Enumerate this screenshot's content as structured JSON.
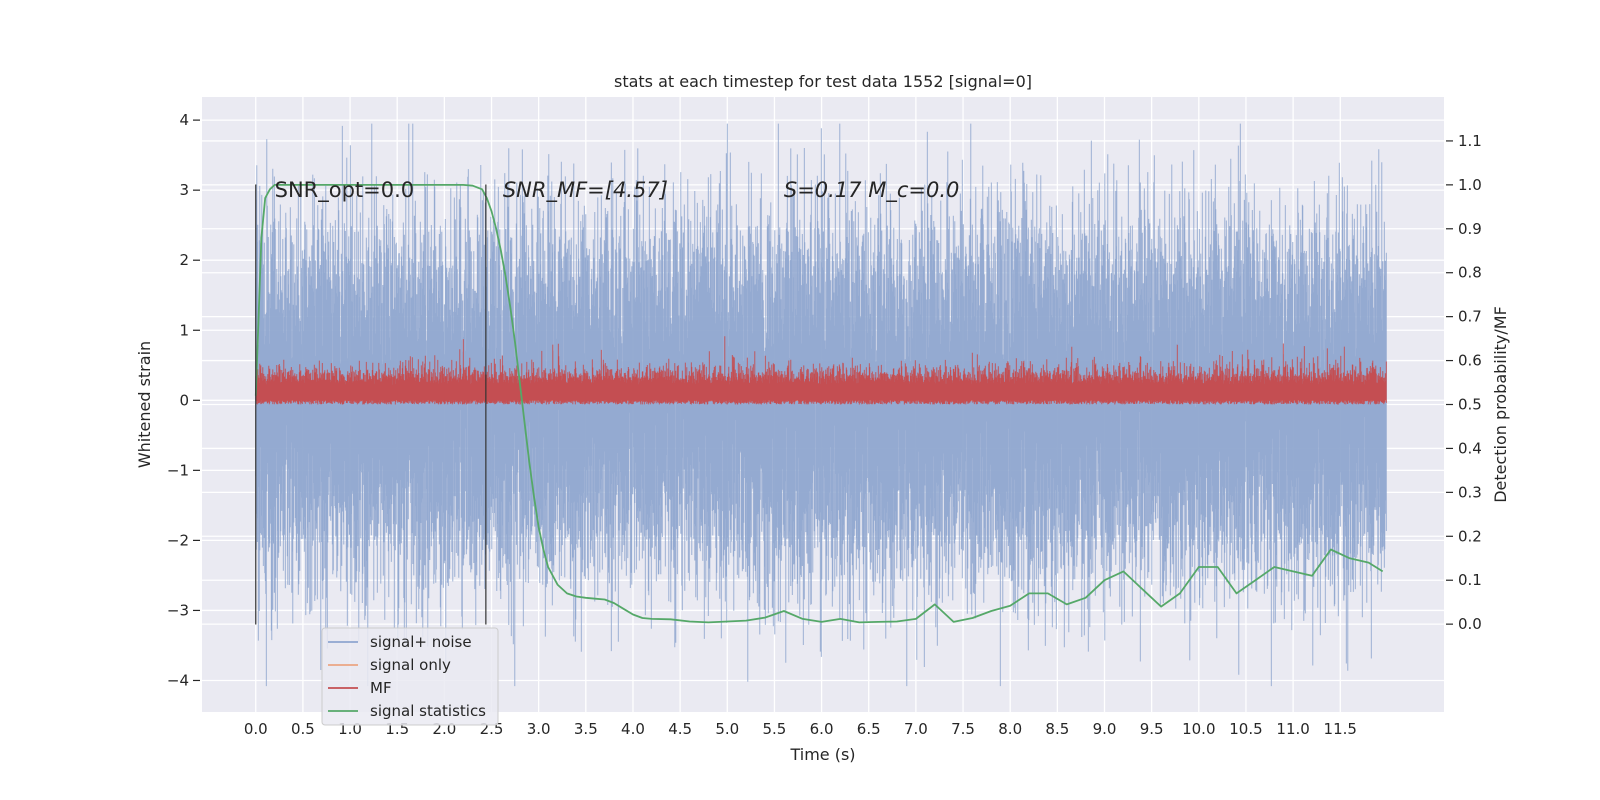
{
  "chart_data": {
    "type": "line",
    "title": "stats at each timestep for test data 1552 [signal=0]",
    "xlabel": "Time (s)",
    "ylabel": "Whitened strain",
    "y2label": "Detection probability/MF",
    "xlim": [
      -0.57,
      12.6
    ],
    "ylim": [
      -4.45,
      4.33
    ],
    "y2lim": [
      -0.2,
      1.2
    ],
    "x_ticks": [
      "0.0",
      "0.5",
      "1.0",
      "1.5",
      "2.0",
      "2.5",
      "3.0",
      "3.5",
      "4.0",
      "4.5",
      "5.0",
      "5.5",
      "6.0",
      "6.5",
      "7.0",
      "7.5",
      "8.0",
      "8.5",
      "9.0",
      "9.5",
      "10.0",
      "10.5",
      "11.0",
      "11.5"
    ],
    "y_ticks": [
      "4",
      "3",
      "2",
      "1",
      "0",
      "−1",
      "−2",
      "−3",
      "−4"
    ],
    "y2_ticks": [
      "1.1",
      "1.0",
      "0.9",
      "0.8",
      "0.7",
      "0.6",
      "0.5",
      "0.4",
      "0.3",
      "0.2",
      "0.1",
      "0.0"
    ],
    "grid": true,
    "legend_position": "lower-left",
    "series": [
      {
        "name": "signal+ noise",
        "color": "#8fa6cf",
        "axis": "left",
        "x_range": [
          0.0,
          11.99
        ],
        "envelope": {
          "mean": 0.0,
          "std": 1.0,
          "max": 3.95,
          "min": -4.08
        }
      },
      {
        "name": "signal only",
        "color": "#eba583",
        "axis": "left",
        "x_range": [
          0.0,
          11.99
        ],
        "values_constant": 0.0
      },
      {
        "name": "MF",
        "color": "#c44e52",
        "axis": "right",
        "x_range": [
          0.0,
          11.99
        ],
        "envelope": {
          "min": 0.5,
          "typical_max": 0.59,
          "max": 0.7
        }
      },
      {
        "name": "signal statistics",
        "color": "#55a868",
        "axis": "right",
        "x": [
          0.0,
          0.03,
          0.06,
          0.1,
          0.15,
          0.2,
          0.4,
          0.8,
          1.2,
          1.6,
          2.0,
          2.1,
          2.2,
          2.3,
          2.4,
          2.45,
          2.5,
          2.55,
          2.6,
          2.65,
          2.7,
          2.75,
          2.8,
          2.85,
          2.9,
          2.95,
          3.0,
          3.05,
          3.1,
          3.2,
          3.3,
          3.4,
          3.5,
          3.6,
          3.7,
          3.8,
          3.9,
          4.0,
          4.1,
          4.2,
          4.4,
          4.6,
          4.8,
          5.0,
          5.2,
          5.4,
          5.6,
          5.8,
          6.0,
          6.2,
          6.4,
          6.6,
          6.8,
          7.0,
          7.2,
          7.4,
          7.6,
          7.8,
          8.0,
          8.2,
          8.4,
          8.6,
          8.8,
          9.0,
          9.2,
          9.4,
          9.6,
          9.8,
          10.0,
          10.2,
          10.4,
          10.6,
          10.8,
          11.0,
          11.2,
          11.4,
          11.6,
          11.8,
          11.95
        ],
        "y": [
          0.52,
          0.7,
          0.88,
          0.97,
          0.99,
          1.0,
          1.0,
          1.0,
          1.0,
          1.0,
          1.0,
          1.0,
          1.0,
          0.998,
          0.99,
          0.97,
          0.94,
          0.9,
          0.85,
          0.79,
          0.72,
          0.64,
          0.55,
          0.46,
          0.37,
          0.29,
          0.22,
          0.17,
          0.13,
          0.09,
          0.07,
          0.063,
          0.06,
          0.058,
          0.056,
          0.048,
          0.035,
          0.022,
          0.014,
          0.012,
          0.011,
          0.006,
          0.004,
          0.006,
          0.008,
          0.015,
          0.03,
          0.012,
          0.005,
          0.012,
          0.004,
          0.005,
          0.006,
          0.012,
          0.045,
          0.005,
          0.014,
          0.03,
          0.042,
          0.07,
          0.07,
          0.045,
          0.06,
          0.1,
          0.12,
          0.08,
          0.04,
          0.07,
          0.13,
          0.13,
          0.07,
          0.1,
          0.13,
          0.12,
          0.11,
          0.17,
          0.15,
          0.14,
          0.12
        ]
      }
    ],
    "vertical_lines": [
      0.0,
      2.44
    ],
    "annotations": [
      {
        "x": 0.2,
        "y": 3.0,
        "text": "SNR_opt=0.0",
        "italic": false
      },
      {
        "x": 2.62,
        "y": 3.0,
        "text": "SNR_MF=[4.57]",
        "italic": true
      },
      {
        "x": 5.6,
        "y": 3.0,
        "text": "S=0.17   M_c=0.0",
        "italic": true
      }
    ]
  }
}
